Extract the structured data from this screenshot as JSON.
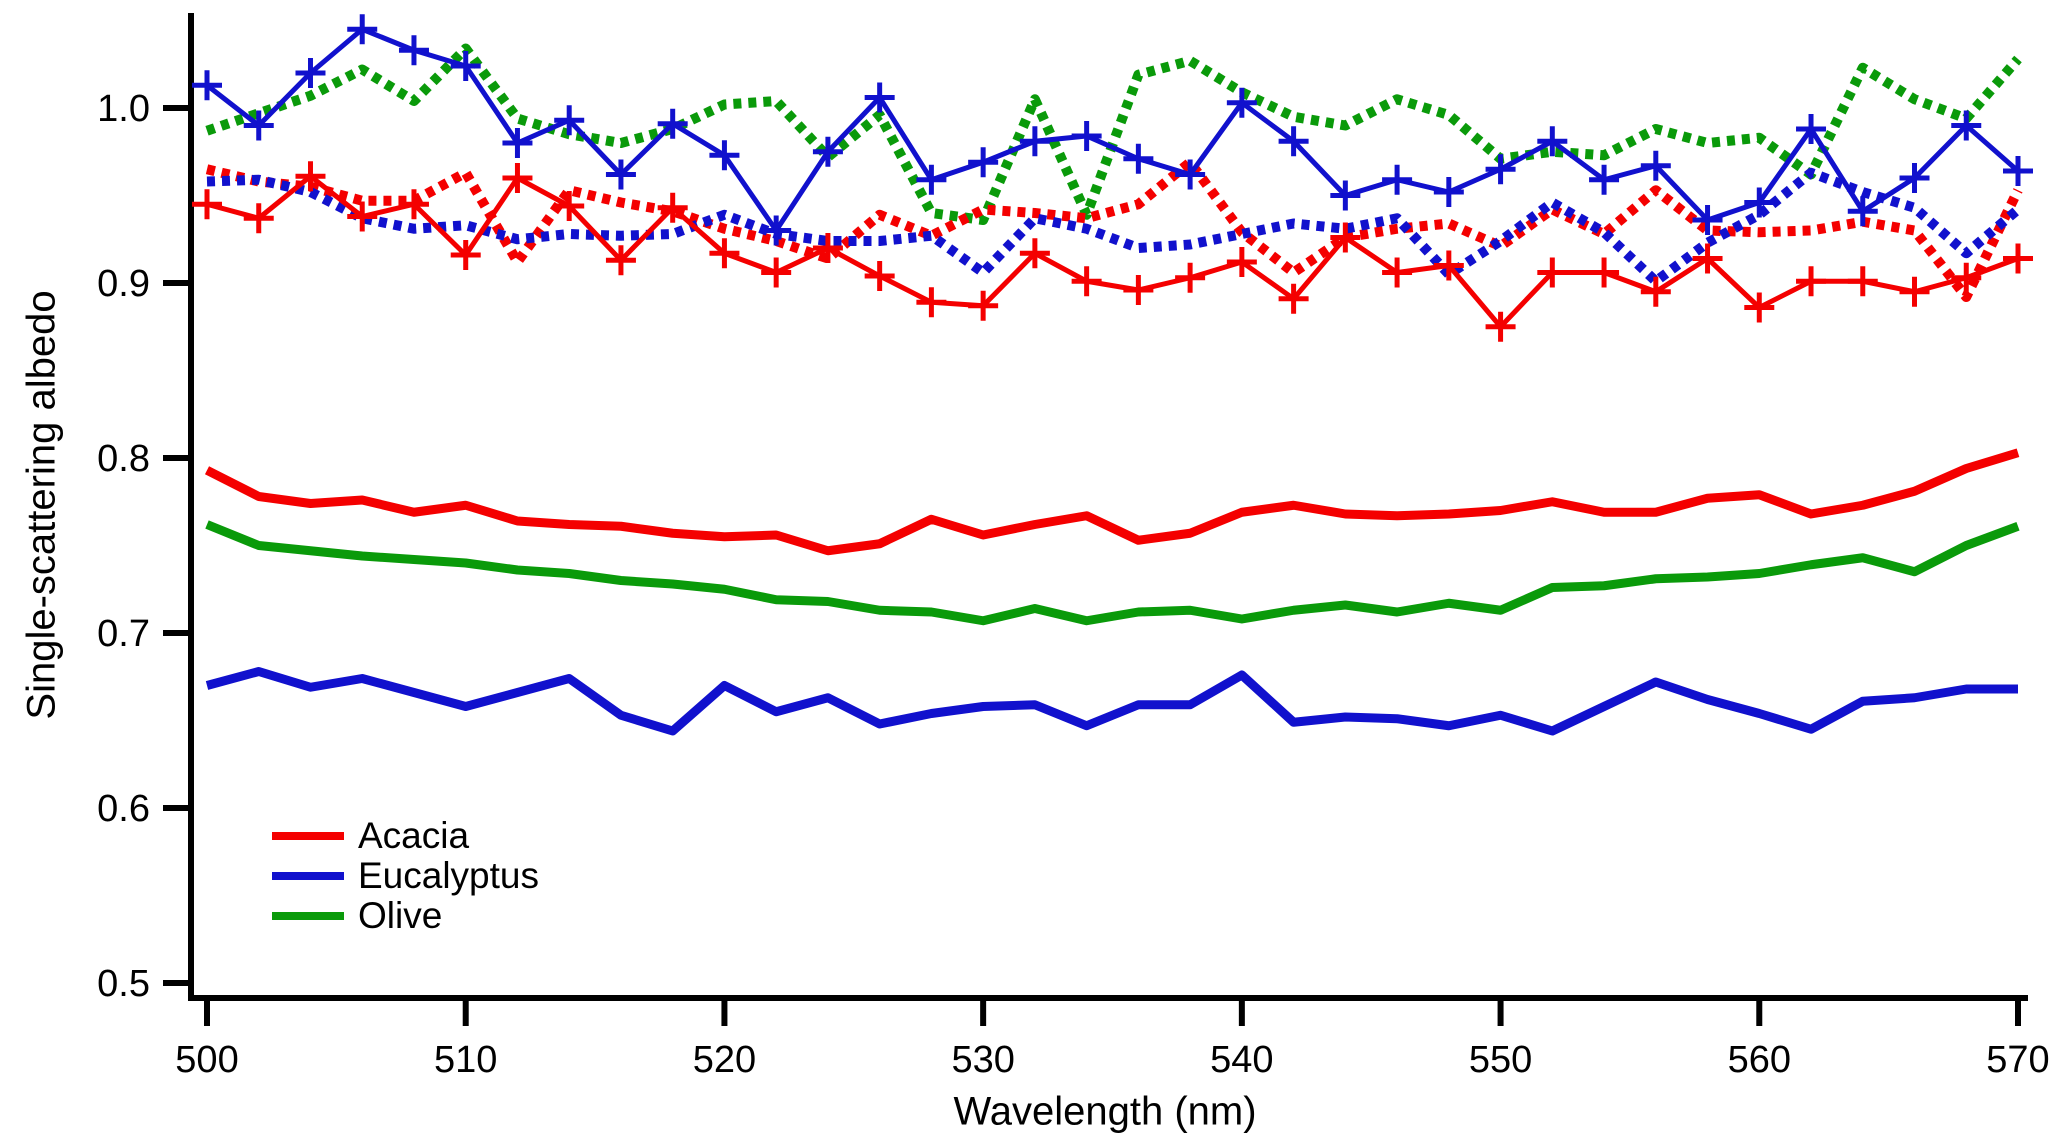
{
  "figure": {
    "ylabel": "Single-scattering albedo",
    "xlabel": "Wavelength (nm)"
  },
  "chart_data": {
    "type": "line",
    "title": "",
    "xlabel": "Wavelength (nm)",
    "ylabel": "Single-scattering albedo",
    "xlim": [
      500,
      570
    ],
    "ylim": [
      0.5,
      1.05
    ],
    "grid": false,
    "x_ticks": [
      {
        "value": 500,
        "label": "500"
      },
      {
        "value": 510,
        "label": "510"
      },
      {
        "value": 520,
        "label": "520"
      },
      {
        "value": 530,
        "label": "530"
      },
      {
        "value": 540,
        "label": "540"
      },
      {
        "value": 550,
        "label": "550"
      },
      {
        "value": 560,
        "label": "560"
      },
      {
        "value": 570,
        "label": "570"
      }
    ],
    "y_ticks": [
      {
        "value": 0.5,
        "label": "0.5"
      },
      {
        "value": 0.6,
        "label": "0.6"
      },
      {
        "value": 0.7,
        "label": "0.7"
      },
      {
        "value": 0.8,
        "label": "0.8"
      },
      {
        "value": 0.9,
        "label": "0.9"
      },
      {
        "value": 1.0,
        "label": "1.0"
      }
    ],
    "colors": {
      "acacia": "#f40000",
      "eucalyptus": "#1111cd",
      "olive": "#0a9a0a"
    },
    "legend": {
      "position": "lower-left",
      "items": [
        {
          "label": "Acacia",
          "color": "acacia"
        },
        {
          "label": "Eucalyptus",
          "color": "eucalyptus"
        },
        {
          "label": "Olive",
          "color": "olive"
        }
      ]
    },
    "x": [
      500,
      502,
      504,
      506,
      508,
      510,
      512,
      514,
      516,
      518,
      520,
      522,
      524,
      526,
      528,
      530,
      532,
      534,
      536,
      538,
      540,
      542,
      544,
      546,
      548,
      550,
      552,
      554,
      556,
      558,
      560,
      562,
      564,
      566,
      568,
      570
    ],
    "series": [
      {
        "name": "Acacia",
        "color": "acacia",
        "line_style": "solid",
        "marker": "none",
        "values": [
          0.793,
          0.778,
          0.774,
          0.776,
          0.769,
          0.773,
          0.764,
          0.762,
          0.761,
          0.757,
          0.755,
          0.756,
          0.747,
          0.751,
          0.765,
          0.756,
          0.762,
          0.767,
          0.753,
          0.757,
          0.769,
          0.773,
          0.768,
          0.767,
          0.768,
          0.77,
          0.775,
          0.769,
          0.769,
          0.777,
          0.779,
          0.768,
          0.773,
          0.781,
          0.794,
          0.803
        ]
      },
      {
        "name": "Olive",
        "color": "olive",
        "line_style": "solid",
        "marker": "none",
        "values": [
          0.762,
          0.75,
          0.747,
          0.744,
          0.742,
          0.74,
          0.736,
          0.734,
          0.73,
          0.728,
          0.725,
          0.719,
          0.718,
          0.713,
          0.712,
          0.707,
          0.714,
          0.707,
          0.712,
          0.713,
          0.708,
          0.713,
          0.716,
          0.712,
          0.717,
          0.713,
          0.726,
          0.727,
          0.731,
          0.732,
          0.734,
          0.739,
          0.743,
          0.735,
          0.75,
          0.761
        ]
      },
      {
        "name": "Eucalyptus",
        "color": "eucalyptus",
        "line_style": "solid",
        "marker": "none",
        "values": [
          0.67,
          0.678,
          0.669,
          0.674,
          0.666,
          0.658,
          0.666,
          0.674,
          0.653,
          0.644,
          0.67,
          0.655,
          0.663,
          0.648,
          0.654,
          0.658,
          0.659,
          0.647,
          0.659,
          0.659,
          0.676,
          0.649,
          0.652,
          0.651,
          0.647,
          0.653,
          0.644,
          0.658,
          0.672,
          0.662,
          0.654,
          0.645,
          0.661,
          0.663,
          0.668,
          0.668
        ]
      },
      {
        "name": "Olive",
        "color": "olive",
        "line_style": "dotted",
        "marker": "none",
        "values": [
          0.987,
          0.997,
          1.007,
          1.022,
          1.004,
          1.034,
          0.994,
          0.985,
          0.98,
          0.988,
          1.002,
          1.004,
          0.972,
          0.996,
          0.94,
          0.936,
          1.005,
          0.939,
          1.019,
          1.027,
          1.009,
          0.995,
          0.99,
          1.005,
          0.996,
          0.971,
          0.975,
          0.973,
          0.988,
          0.98,
          0.983,
          0.962,
          1.023,
          1.005,
          0.994,
          1.028
        ]
      },
      {
        "name": "Acacia",
        "color": "acacia",
        "line_style": "dotted",
        "marker": "none",
        "values": [
          0.965,
          0.958,
          0.955,
          0.947,
          0.947,
          0.963,
          0.912,
          0.953,
          0.946,
          0.941,
          0.931,
          0.924,
          0.914,
          0.939,
          0.927,
          0.942,
          0.94,
          0.937,
          0.945,
          0.969,
          0.929,
          0.906,
          0.926,
          0.931,
          0.934,
          0.921,
          0.942,
          0.928,
          0.953,
          0.93,
          0.929,
          0.93,
          0.935,
          0.93,
          0.892,
          0.953
        ]
      },
      {
        "name": "Eucalyptus",
        "color": "eucalyptus",
        "line_style": "dotted",
        "marker": "none",
        "values": [
          0.958,
          0.959,
          0.952,
          0.937,
          0.931,
          0.933,
          0.925,
          0.928,
          0.927,
          0.928,
          0.939,
          0.928,
          0.924,
          0.924,
          0.927,
          0.906,
          0.937,
          0.931,
          0.92,
          0.922,
          0.928,
          0.934,
          0.931,
          0.937,
          0.905,
          0.924,
          0.946,
          0.929,
          0.901,
          0.923,
          0.939,
          0.963,
          0.952,
          0.943,
          0.917,
          0.942
        ]
      },
      {
        "name": "Acacia",
        "color": "acacia",
        "line_style": "thin-solid",
        "marker": "plus",
        "values": [
          0.945,
          0.937,
          0.961,
          0.938,
          0.945,
          0.916,
          0.96,
          0.944,
          0.913,
          0.943,
          0.917,
          0.906,
          0.92,
          0.904,
          0.889,
          0.887,
          0.917,
          0.901,
          0.896,
          0.903,
          0.912,
          0.891,
          0.926,
          0.906,
          0.91,
          0.875,
          0.906,
          0.906,
          0.895,
          0.914,
          0.886,
          0.901,
          0.901,
          0.895,
          0.903,
          0.914
        ]
      },
      {
        "name": "Eucalyptus",
        "color": "eucalyptus",
        "line_style": "thin-solid",
        "marker": "plus",
        "values": [
          1.013,
          0.99,
          1.02,
          1.045,
          1.033,
          1.024,
          0.98,
          0.993,
          0.962,
          0.991,
          0.973,
          0.93,
          0.975,
          1.006,
          0.959,
          0.969,
          0.981,
          0.984,
          0.971,
          0.962,
          1.003,
          0.981,
          0.95,
          0.959,
          0.952,
          0.965,
          0.981,
          0.959,
          0.967,
          0.936,
          0.946,
          0.988,
          0.941,
          0.96,
          0.99,
          0.964
        ]
      }
    ]
  }
}
